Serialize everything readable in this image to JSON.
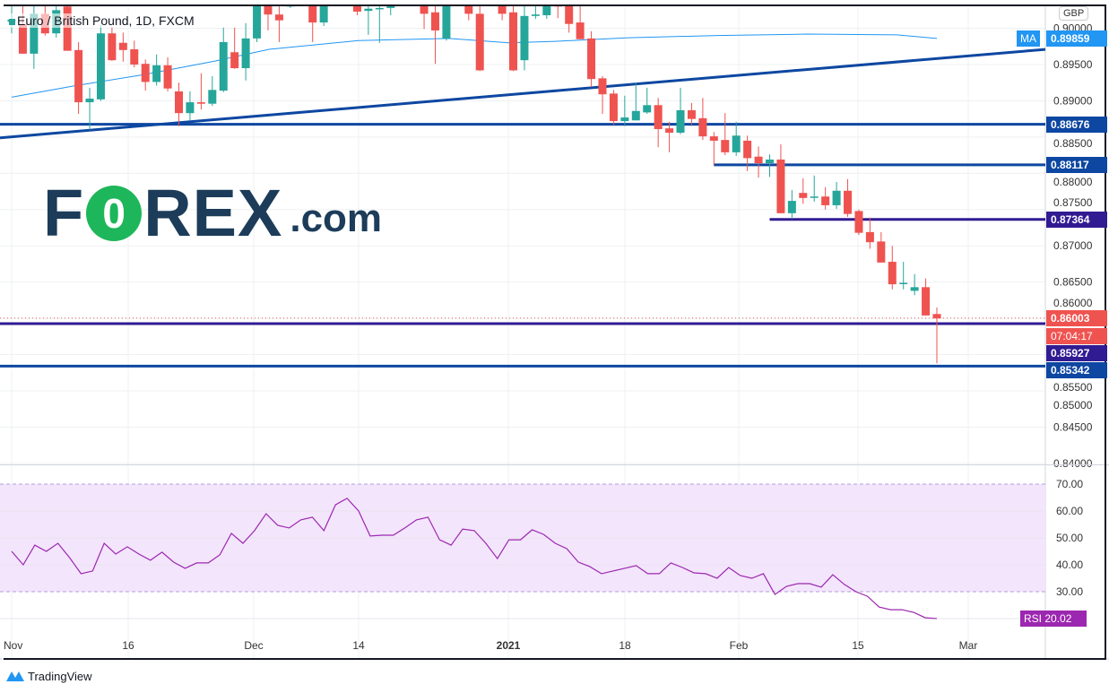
{
  "header": {
    "symbol_title": "Euro / British Pound, 1D, FXCM",
    "currency_button": "GBP"
  },
  "logo": {
    "brand_prefix": "F",
    "brand_o": "0",
    "brand_suffix": "REX",
    ".com": ".com",
    "domain": ".com"
  },
  "footer": {
    "brand": "TradingView"
  },
  "colors": {
    "up": "#26a69a",
    "down": "#ef5350",
    "ma": "#2196f3",
    "blue_line": "#0d47a1",
    "purple_line": "#311b92",
    "rsi": "#9c27b0",
    "rsi_band": "#f3e5fc"
  },
  "chart_data": [
    {
      "type": "candlestick",
      "title": "Euro / British Pound, 1D, FXCM",
      "ylim": [
        0.8394,
        0.9033
      ],
      "y_ticks": [
        "0.84000",
        "0.84500",
        "0.85000",
        "0.85500",
        "0.86000",
        "0.86500",
        "0.87000",
        "0.87500",
        "0.88000",
        "0.88500",
        "0.89000",
        "0.89500",
        "0.90000"
      ],
      "x_ticks": [
        "Nov",
        "16",
        "Dec",
        "14",
        "2021",
        "18",
        "Feb",
        "15",
        "Mar"
      ],
      "grid": true,
      "candles_ohlc": [
        [
          0.9009,
          0.904,
          0.8993,
          0.9012
        ],
        [
          0.9006,
          0.904,
          0.8965,
          0.8965
        ],
        [
          0.8965,
          0.904,
          0.8944,
          0.902
        ],
        [
          0.902,
          0.904,
          0.899,
          0.8993
        ],
        [
          0.8993,
          0.904,
          0.8987,
          0.9025
        ],
        [
          0.903,
          0.904,
          0.8969,
          0.8969
        ],
        [
          0.897,
          0.8981,
          0.8882,
          0.8898
        ],
        [
          0.8898,
          0.8918,
          0.886,
          0.8903
        ],
        [
          0.8902,
          0.9004,
          0.89,
          0.8993
        ],
        [
          0.8993,
          0.9002,
          0.8955,
          0.8956
        ],
        [
          0.898,
          0.8994,
          0.8954,
          0.897
        ],
        [
          0.8971,
          0.8983,
          0.8946,
          0.895
        ],
        [
          0.8951,
          0.8957,
          0.8914,
          0.8926
        ],
        [
          0.8926,
          0.8964,
          0.8921,
          0.8949
        ],
        [
          0.8949,
          0.896,
          0.8913,
          0.8917
        ],
        [
          0.8913,
          0.8925,
          0.8865,
          0.8883
        ],
        [
          0.8883,
          0.8913,
          0.8873,
          0.8898
        ],
        [
          0.8898,
          0.8938,
          0.8888,
          0.8896
        ],
        [
          0.8896,
          0.8934,
          0.8893,
          0.8915
        ],
        [
          0.8914,
          0.9001,
          0.8912,
          0.8981
        ],
        [
          0.8967,
          0.9001,
          0.8944,
          0.8945
        ],
        [
          0.8945,
          0.9007,
          0.8928,
          0.8986
        ],
        [
          0.8986,
          0.904,
          0.8981,
          0.904
        ],
        [
          0.904,
          0.9045,
          0.8997,
          0.9019
        ],
        [
          0.9019,
          0.904,
          0.8981,
          0.9011
        ],
        [
          0.903,
          0.904,
          0.9028,
          0.9033
        ],
        [
          0.905,
          0.907,
          0.904,
          0.906
        ],
        [
          0.904,
          0.9045,
          0.8981,
          0.9008
        ],
        [
          0.9008,
          0.904,
          0.9003,
          0.904
        ],
        [
          0.905,
          0.907,
          0.904,
          0.906
        ],
        [
          0.906,
          0.907,
          0.904,
          0.905
        ],
        [
          0.904,
          0.9045,
          0.9018,
          0.9023
        ],
        [
          0.9024,
          0.904,
          0.8991,
          0.9027
        ],
        [
          0.9027,
          0.904,
          0.898,
          0.9028
        ],
        [
          0.9028,
          0.904,
          0.9018,
          0.904
        ],
        [
          0.905,
          0.907,
          0.904,
          0.906
        ],
        [
          0.906,
          0.907,
          0.904,
          0.905
        ],
        [
          0.904,
          0.9045,
          0.8999,
          0.902
        ],
        [
          0.9022,
          0.904,
          0.8951,
          0.8997
        ],
        [
          0.8986,
          0.904,
          0.8983,
          0.904
        ],
        [
          0.905,
          0.907,
          0.904,
          0.906
        ],
        [
          0.904,
          0.9045,
          0.9011,
          0.902
        ],
        [
          0.902,
          0.904,
          0.8941,
          0.8942
        ],
        [
          0.905,
          0.907,
          0.904,
          0.906
        ],
        [
          0.904,
          0.9045,
          0.9011,
          0.902
        ],
        [
          0.9022,
          0.904,
          0.8941,
          0.8942
        ],
        [
          0.8956,
          0.904,
          0.8942,
          0.9017
        ],
        [
          0.9017,
          0.904,
          0.9013,
          0.9019
        ],
        [
          0.9018,
          0.904,
          0.9013,
          0.9033
        ],
        [
          0.9033,
          0.904,
          0.9014,
          0.903
        ],
        [
          0.9033,
          0.904,
          0.8994,
          0.9006
        ],
        [
          0.9008,
          0.904,
          0.8985,
          0.8985
        ],
        [
          0.8986,
          0.8996,
          0.8919,
          0.893
        ],
        [
          0.8931,
          0.8934,
          0.8882,
          0.8909
        ],
        [
          0.891,
          0.8915,
          0.8867,
          0.8872
        ],
        [
          0.8872,
          0.8907,
          0.8865,
          0.8877
        ],
        [
          0.8873,
          0.8925,
          0.8873,
          0.8886
        ],
        [
          0.8884,
          0.8918,
          0.8882,
          0.8894
        ],
        [
          0.8894,
          0.8904,
          0.8836,
          0.8861
        ],
        [
          0.8862,
          0.8871,
          0.8829,
          0.8856
        ],
        [
          0.8856,
          0.8918,
          0.8854,
          0.8887
        ],
        [
          0.8887,
          0.8897,
          0.8867,
          0.8875
        ],
        [
          0.8876,
          0.8904,
          0.8846,
          0.8851
        ],
        [
          0.8851,
          0.8857,
          0.8811,
          0.8845
        ],
        [
          0.8846,
          0.8883,
          0.8825,
          0.8829
        ],
        [
          0.8829,
          0.8871,
          0.8824,
          0.8852
        ],
        [
          0.8845,
          0.8852,
          0.8803,
          0.8821
        ],
        [
          0.8823,
          0.8837,
          0.8794,
          0.8814
        ],
        [
          0.8814,
          0.8826,
          0.8795,
          0.8819
        ],
        [
          0.8819,
          0.884,
          0.8745,
          0.8745
        ],
        [
          0.8745,
          0.8777,
          0.8737,
          0.8762
        ],
        [
          0.8773,
          0.8793,
          0.8758,
          0.8766
        ],
        [
          0.8767,
          0.8797,
          0.8761,
          0.8768
        ],
        [
          0.8768,
          0.8781,
          0.875,
          0.8756
        ],
        [
          0.8756,
          0.8788,
          0.8751,
          0.8776
        ],
        [
          0.8776,
          0.8792,
          0.874,
          0.8744
        ],
        [
          0.8748,
          0.875,
          0.8715,
          0.8718
        ],
        [
          0.8719,
          0.8739,
          0.8696,
          0.8705
        ],
        [
          0.8706,
          0.8719,
          0.8677,
          0.8677
        ],
        [
          0.8678,
          0.87,
          0.864,
          0.8647
        ],
        [
          0.8648,
          0.8678,
          0.864,
          0.8649
        ],
        [
          0.8638,
          0.8661,
          0.8632,
          0.8643
        ],
        [
          0.8643,
          0.8655,
          0.8604,
          0.8604
        ],
        [
          0.8606,
          0.8615,
          0.8538,
          0.86
        ]
      ],
      "ma": {
        "name": "MA",
        "last": "0.89859",
        "points": [
          [
            0,
            0.8905
          ],
          [
            5.4,
            0.892
          ],
          [
            11.8,
            0.8936
          ],
          [
            18.3,
            0.8955
          ],
          [
            23.1,
            0.8971
          ],
          [
            31.1,
            0.8983
          ],
          [
            39.2,
            0.8986
          ],
          [
            44.6,
            0.898
          ],
          [
            48.8,
            0.8982
          ],
          [
            55.3,
            0.8987
          ],
          [
            63.3,
            0.899
          ],
          [
            71.4,
            0.8992
          ],
          [
            79.4,
            0.8991
          ],
          [
            83,
            0.8986
          ]
        ]
      },
      "trendline": [
        [
          0,
          0.8849
        ],
        [
          92.8,
          0.8971
        ]
      ],
      "levels": [
        {
          "price": 0.88676,
          "label": "0.88676",
          "color": "#0d47a1",
          "from_bar": null
        },
        {
          "price": 0.88117,
          "label": "0.88117",
          "color": "#0d47a1",
          "from_bar": 63
        },
        {
          "price": 0.87364,
          "label": "0.87364",
          "color": "#311b92",
          "from_bar": 68
        },
        {
          "price": 0.85927,
          "label": "0.85927",
          "color": "#311b92",
          "from_bar": null
        },
        {
          "price": 0.85342,
          "label": "0.85342",
          "color": "#0d47a1",
          "from_bar": null
        }
      ],
      "last_price": {
        "value": 0.86003,
        "label": "0.86003",
        "countdown": "07:04:17"
      }
    },
    {
      "type": "line",
      "name": "RSI",
      "ylim": [
        15,
        75
      ],
      "band": [
        30,
        70
      ],
      "y_ticks": [
        "70.00",
        "60.00",
        "50.00",
        "40.00",
        "30.00"
      ],
      "last": "20.02",
      "values": [
        45,
        40,
        47.3,
        45,
        48,
        42.7,
        36.7,
        37.7,
        48,
        44,
        46.7,
        44,
        41.7,
        44.7,
        41,
        38.7,
        40.7,
        40.7,
        43.7,
        51.7,
        48,
        52.7,
        59,
        54.7,
        53.7,
        56.7,
        57.7,
        52.7,
        62.3,
        64.7,
        60,
        50.7,
        51,
        51,
        53.7,
        56.7,
        57.7,
        49.3,
        47.3,
        53.3,
        52.7,
        48,
        42.3,
        49.3,
        49.3,
        53,
        51.3,
        48,
        46,
        41,
        39.3,
        36.7,
        37.7,
        38.7,
        39.7,
        36.7,
        36.7,
        40.7,
        39,
        37,
        36.7,
        35,
        39,
        36,
        35,
        36.7,
        29,
        32,
        33,
        33,
        31.7,
        36.3,
        32.7,
        30,
        28.3,
        24.3,
        23.3,
        23.3,
        22.3,
        20.3,
        20.02
      ]
    }
  ]
}
